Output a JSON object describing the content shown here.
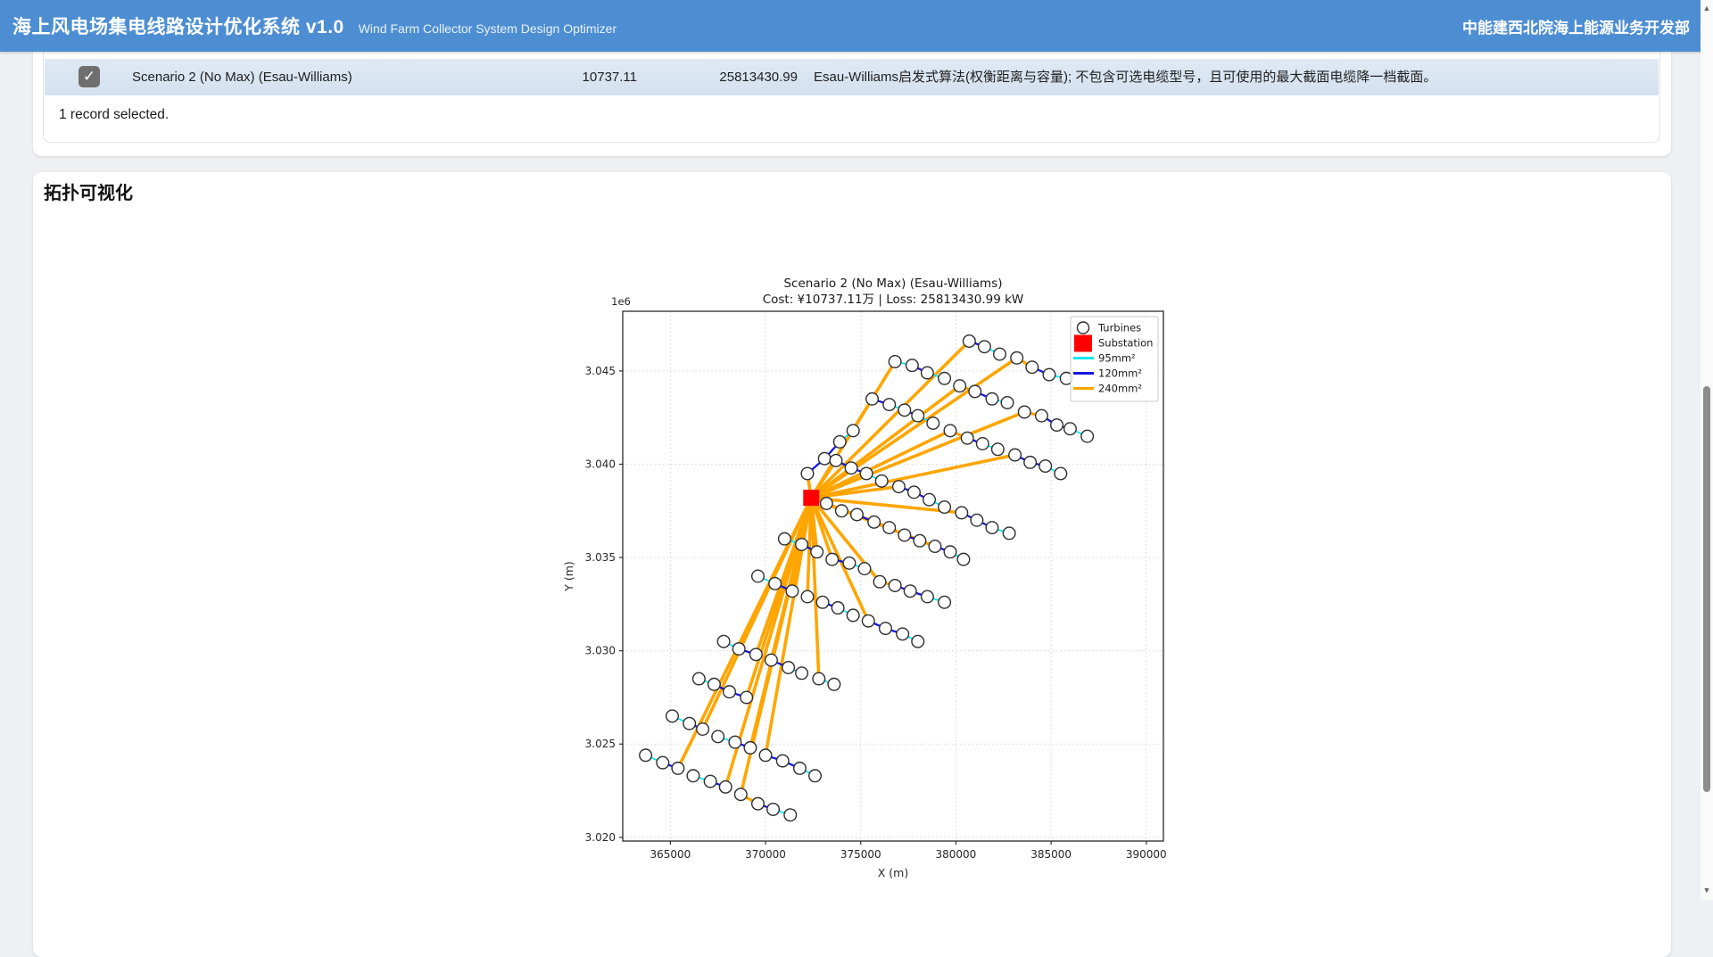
{
  "header": {
    "title": "海上风电场集电线路设计优化系统 v1.0",
    "subtitle": "Wind Farm Collector System Design Optimizer",
    "org": "中能建西北院海上能源业务开发部"
  },
  "table": {
    "row": {
      "checked": true,
      "check_glyph": "✓",
      "name": "Scenario 2 (No Max) (Esau-Williams)",
      "cost": "10737.11",
      "loss": "25813430.99",
      "description": "Esau-Williams启发式算法(权衡距离与容量); 不包含可选电缆型号，且可使用的最大截面电缆降一档截面。"
    },
    "footer": "1 record selected."
  },
  "section": {
    "title": "拓扑可视化"
  },
  "scrollbar": {
    "up_glyph": "▲",
    "down_glyph": "▼"
  },
  "chart_data": {
    "type": "scatter",
    "title": "Scenario 2 (No Max) (Esau-Williams)",
    "subtitle": "Cost: ¥10737.11万 | Loss: 25813430.99 kW",
    "xlabel": "X (m)",
    "ylabel": "Y (m)",
    "offset_label": "1e6",
    "xlim": [
      362500,
      390900
    ],
    "ylim": [
      3019800,
      3048200
    ],
    "grid": true,
    "legend_position": "upper right",
    "xticks": [
      {
        "v": 365000,
        "label": "365000"
      },
      {
        "v": 370000,
        "label": "370000"
      },
      {
        "v": 375000,
        "label": "375000"
      },
      {
        "v": 380000,
        "label": "380000"
      },
      {
        "v": 385000,
        "label": "385000"
      },
      {
        "v": 390000,
        "label": "390000"
      }
    ],
    "yticks": [
      {
        "v": 3020000,
        "label": "3.020"
      },
      {
        "v": 3025000,
        "label": "3.025"
      },
      {
        "v": 3030000,
        "label": "3.030"
      },
      {
        "v": 3035000,
        "label": "3.035"
      },
      {
        "v": 3040000,
        "label": "3.040"
      },
      {
        "v": 3045000,
        "label": "3.045"
      }
    ],
    "legend": [
      {
        "label": "Turbines",
        "marker": "circle"
      },
      {
        "label": "Substation",
        "marker": "square",
        "color": "#ff0000"
      },
      {
        "label": "95mm²",
        "marker": "line",
        "color": "#00e5f2"
      },
      {
        "label": "120mm²",
        "marker": "line",
        "color": "#1616dd"
      },
      {
        "label": "240mm²",
        "marker": "line",
        "color": "#ffa500"
      }
    ],
    "substation": {
      "x": 372400,
      "y": 3038200,
      "color": "#ff0000"
    },
    "turbine_style": {
      "fill": "#ffffff",
      "edge": "#2e2e2e"
    },
    "cable_colors": {
      "95": "#00e5f2",
      "120": "#1616dd",
      "240": "#ffa500"
    },
    "cable_widths": {
      "95": 1.7,
      "120": 2.3,
      "240": 3.2
    },
    "feeder": {
      "type": "240",
      "width": 3.6
    },
    "strings": [
      {
        "t": [
          [
            376800,
            3045500
          ],
          [
            377700,
            3045300
          ],
          [
            378500,
            3044900
          ],
          [
            379400,
            3044600
          ]
        ],
        "h": 0,
        "s": [
          "95",
          "120",
          "95"
        ]
      },
      {
        "t": [
          [
            375600,
            3043500
          ],
          [
            376500,
            3043200
          ],
          [
            377300,
            3042900
          ],
          [
            378000,
            3042600
          ],
          [
            378800,
            3042200
          ]
        ],
        "h": 0,
        "s": [
          "120",
          "95",
          "120",
          "95"
        ]
      },
      {
        "t": [
          [
            372200,
            3039500
          ],
          [
            373100,
            3040300
          ],
          [
            373900,
            3041200
          ],
          [
            374600,
            3041800
          ]
        ],
        "h": 0,
        "s": [
          "120",
          "120",
          "95"
        ]
      },
      {
        "t": [
          [
            380700,
            3046600
          ],
          [
            381500,
            3046300
          ],
          [
            382300,
            3045900
          ]
        ],
        "h": 0,
        "s": [
          "120",
          "95"
        ]
      },
      {
        "t": [
          [
            383200,
            3045700
          ],
          [
            384000,
            3045200
          ],
          [
            384900,
            3044800
          ],
          [
            385800,
            3044600
          ]
        ],
        "h": 0,
        "s": [
          "240",
          "120",
          "95"
        ]
      },
      {
        "t": [
          [
            380200,
            3044200
          ],
          [
            381000,
            3043900
          ],
          [
            381900,
            3043500
          ],
          [
            382700,
            3043300
          ]
        ],
        "h": 0,
        "s": [
          "240",
          "120",
          "95"
        ]
      },
      {
        "t": [
          [
            383600,
            3042800
          ],
          [
            384500,
            3042600
          ],
          [
            385300,
            3042100
          ],
          [
            386000,
            3041900
          ],
          [
            386900,
            3041500
          ]
        ],
        "h": 0,
        "s": [
          "240",
          "120",
          "120",
          "95"
        ]
      },
      {
        "t": [
          [
            379700,
            3041800
          ],
          [
            380600,
            3041400
          ],
          [
            381400,
            3041100
          ],
          [
            382200,
            3040800
          ]
        ],
        "h": 0,
        "s": [
          "240",
          "120",
          "95"
        ]
      },
      {
        "t": [
          [
            383100,
            3040500
          ],
          [
            383900,
            3040100
          ],
          [
            384700,
            3039900
          ],
          [
            385500,
            3039500
          ]
        ],
        "h": 0,
        "s": [
          "120",
          "120",
          "95"
        ]
      },
      {
        "t": [
          [
            373700,
            3040200
          ],
          [
            374500,
            3039800
          ],
          [
            375300,
            3039500
          ],
          [
            376100,
            3039100
          ]
        ],
        "h": 0,
        "s": [
          "120",
          "120",
          "95"
        ]
      },
      {
        "t": [
          [
            377000,
            3038800
          ],
          [
            377800,
            3038500
          ],
          [
            378600,
            3038100
          ],
          [
            379400,
            3037700
          ]
        ],
        "h": 0,
        "s": [
          "120",
          "120",
          "95"
        ]
      },
      {
        "t": [
          [
            380300,
            3037400
          ],
          [
            381100,
            3037000
          ],
          [
            381900,
            3036600
          ],
          [
            382800,
            3036300
          ]
        ],
        "h": 0,
        "s": [
          "120",
          "120",
          "95"
        ]
      },
      {
        "t": [
          [
            373200,
            3037900
          ],
          [
            374000,
            3037500
          ],
          [
            374800,
            3037300
          ],
          [
            375700,
            3036900
          ]
        ],
        "h": 0,
        "s": [
          "240",
          "240",
          "120"
        ]
      },
      {
        "t": [
          [
            376500,
            3036600
          ],
          [
            377300,
            3036200
          ],
          [
            378100,
            3035900
          ]
        ],
        "h": 0,
        "s": [
          "240",
          "120"
        ]
      },
      {
        "t": [
          [
            378900,
            3035600
          ],
          [
            379700,
            3035300
          ],
          [
            380400,
            3034900
          ]
        ],
        "h": 0,
        "s": [
          "120",
          "95"
        ]
      },
      {
        "t": [
          [
            371000,
            3036000
          ],
          [
            371900,
            3035700
          ],
          [
            372700,
            3035300
          ]
        ],
        "h": 2,
        "s": [
          "95",
          "120"
        ]
      },
      {
        "t": [
          [
            373500,
            3034900
          ],
          [
            374400,
            3034700
          ],
          [
            375200,
            3034400
          ]
        ],
        "h": 0,
        "s": [
          "120",
          "95"
        ]
      },
      {
        "t": [
          [
            376000,
            3033700
          ],
          [
            376800,
            3033500
          ],
          [
            377600,
            3033200
          ],
          [
            378500,
            3032900
          ],
          [
            379400,
            3032600
          ]
        ],
        "h": 0,
        "s": [
          "240",
          "120",
          "120",
          "95"
        ]
      },
      {
        "t": [
          [
            369600,
            3034000
          ],
          [
            370500,
            3033600
          ],
          [
            371400,
            3033200
          ]
        ],
        "h": 2,
        "s": [
          "95",
          "120"
        ]
      },
      {
        "t": [
          [
            372200,
            3032900
          ],
          [
            373000,
            3032600
          ],
          [
            373800,
            3032300
          ],
          [
            374600,
            3031900
          ]
        ],
        "h": 0,
        "s": [
          "240",
          "120",
          "95"
        ]
      },
      {
        "t": [
          [
            375400,
            3031600
          ],
          [
            376300,
            3031200
          ],
          [
            377200,
            3030900
          ],
          [
            378000,
            3030500
          ]
        ],
        "h": 0,
        "s": [
          "120",
          "120",
          "95"
        ]
      },
      {
        "t": [
          [
            367800,
            3030500
          ],
          [
            368600,
            3030100
          ],
          [
            369500,
            3029800
          ]
        ],
        "h": 2,
        "s": [
          "95",
          "120"
        ]
      },
      {
        "t": [
          [
            370300,
            3029500
          ],
          [
            371200,
            3029100
          ],
          [
            371900,
            3028800
          ]
        ],
        "h": 0,
        "s": [
          "120",
          "95"
        ]
      },
      {
        "t": [
          [
            372800,
            3028500
          ],
          [
            373600,
            3028200
          ]
        ],
        "h": 0,
        "s": [
          "95"
        ]
      },
      {
        "t": [
          [
            366500,
            3028500
          ],
          [
            367300,
            3028200
          ],
          [
            368100,
            3027800
          ],
          [
            369000,
            3027500
          ]
        ],
        "h": 3,
        "s": [
          "95",
          "120",
          "120"
        ]
      },
      {
        "t": [
          [
            365100,
            3026500
          ],
          [
            366000,
            3026100
          ],
          [
            366700,
            3025800
          ]
        ],
        "h": 2,
        "s": [
          "95",
          "120"
        ]
      },
      {
        "t": [
          [
            367500,
            3025400
          ],
          [
            368400,
            3025100
          ],
          [
            369200,
            3024800
          ]
        ],
        "h": 2,
        "s": [
          "95",
          "120"
        ]
      },
      {
        "t": [
          [
            370000,
            3024400
          ],
          [
            370900,
            3024100
          ],
          [
            371800,
            3023700
          ],
          [
            372600,
            3023300
          ]
        ],
        "h": 0,
        "s": [
          "120",
          "120",
          "95"
        ]
      },
      {
        "t": [
          [
            363700,
            3024400
          ],
          [
            364600,
            3024000
          ],
          [
            365400,
            3023700
          ]
        ],
        "h": 2,
        "s": [
          "95",
          "120"
        ]
      },
      {
        "t": [
          [
            366200,
            3023300
          ],
          [
            367100,
            3023000
          ],
          [
            367900,
            3022700
          ]
        ],
        "h": 2,
        "s": [
          "95",
          "120"
        ]
      },
      {
        "t": [
          [
            368700,
            3022300
          ],
          [
            369600,
            3021800
          ],
          [
            370400,
            3021500
          ],
          [
            371300,
            3021200
          ]
        ],
        "h": 0,
        "s": [
          "240",
          "120",
          "95"
        ]
      }
    ]
  }
}
